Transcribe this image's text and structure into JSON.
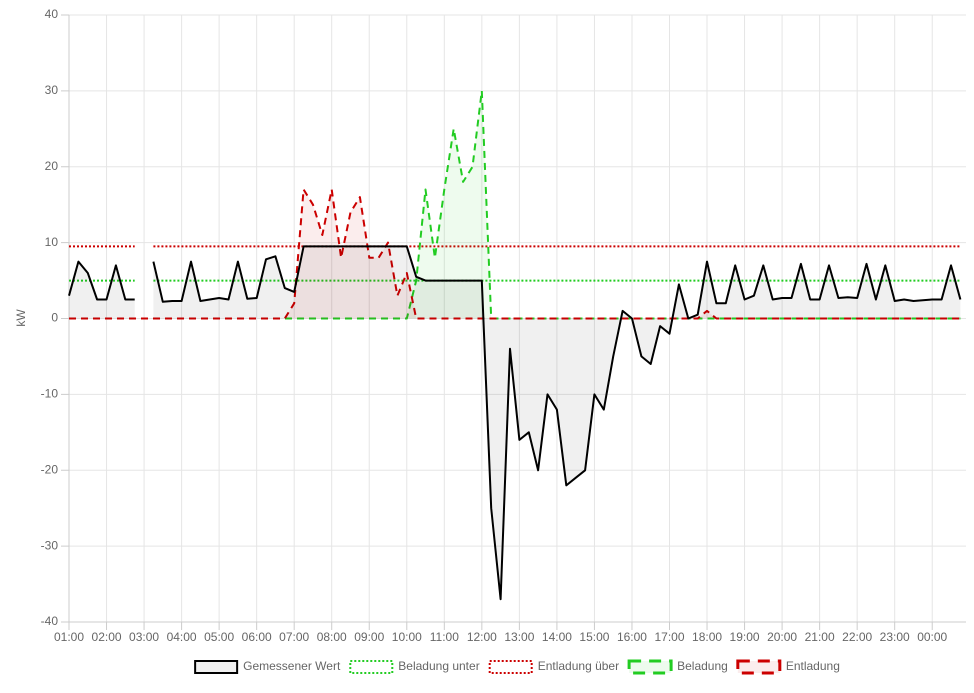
{
  "chart_data": {
    "type": "line",
    "y_label": "kW",
    "xlim": [
      1,
      24.9
    ],
    "xticks": [
      {
        "value": 1,
        "label": "01:00"
      },
      {
        "value": 2,
        "label": "02:00"
      },
      {
        "value": 3,
        "label": "03:00"
      },
      {
        "value": 4,
        "label": "04:00"
      },
      {
        "value": 5,
        "label": "05:00"
      },
      {
        "value": 6,
        "label": "06:00"
      },
      {
        "value": 7,
        "label": "07:00"
      },
      {
        "value": 8,
        "label": "08:00"
      },
      {
        "value": 9,
        "label": "09:00"
      },
      {
        "value": 10,
        "label": "10:00"
      },
      {
        "value": 11,
        "label": "11:00"
      },
      {
        "value": 12,
        "label": "12:00"
      },
      {
        "value": 13,
        "label": "13:00"
      },
      {
        "value": 14,
        "label": "14:00"
      },
      {
        "value": 15,
        "label": "15:00"
      },
      {
        "value": 16,
        "label": "16:00"
      },
      {
        "value": 17,
        "label": "17:00"
      },
      {
        "value": 18,
        "label": "18:00"
      },
      {
        "value": 19,
        "label": "19:00"
      },
      {
        "value": 20,
        "label": "20:00"
      },
      {
        "value": 21,
        "label": "21:00"
      },
      {
        "value": 22,
        "label": "22:00"
      },
      {
        "value": 23,
        "label": "23:00"
      },
      {
        "value": 24,
        "label": "00:00"
      }
    ],
    "ylim": [
      -40,
      40
    ],
    "yticks": [
      40,
      30,
      20,
      10,
      0,
      -10,
      -20,
      -30,
      -40
    ],
    "grid": true,
    "legend": "bottom",
    "x": [
      1,
      1.25,
      1.5,
      1.75,
      2,
      2.25,
      2.5,
      2.75,
      3,
      3.25,
      3.5,
      3.75,
      4,
      4.25,
      4.5,
      4.75,
      5,
      5.25,
      5.5,
      5.75,
      6,
      6.25,
      6.5,
      6.75,
      7,
      7.25,
      7.5,
      7.75,
      8,
      8.25,
      8.5,
      8.75,
      9,
      9.25,
      9.5,
      9.75,
      10,
      10.25,
      10.5,
      10.75,
      11,
      11.25,
      11.5,
      11.75,
      12,
      12.25,
      12.5,
      12.75,
      13,
      13.25,
      13.5,
      13.75,
      14,
      14.25,
      14.5,
      14.75,
      15,
      15.25,
      15.5,
      15.75,
      16,
      16.25,
      16.5,
      16.75,
      17,
      17.25,
      17.5,
      17.75,
      18,
      18.25,
      18.5,
      18.75,
      19,
      19.25,
      19.5,
      19.75,
      20,
      20.25,
      20.5,
      20.75,
      21,
      21.25,
      21.5,
      21.75,
      22,
      22.25,
      22.5,
      22.75,
      23,
      23.25,
      23.5,
      23.75,
      24,
      24.25,
      24.5,
      24.75
    ],
    "series": [
      {
        "name": "Gemessener Wert",
        "color": "#000000",
        "fill": "rgba(0,0,0,0.06)",
        "style": "solid",
        "values": [
          3,
          7.5,
          6,
          2.5,
          2.5,
          7,
          2.5,
          2.5,
          null,
          7.5,
          2.2,
          2.3,
          2.3,
          7.5,
          2.3,
          2.5,
          2.7,
          2.5,
          7.5,
          2.6,
          2.7,
          7.8,
          8.2,
          4,
          3.5,
          9.5,
          9.5,
          9.5,
          9.5,
          9.5,
          9.5,
          9.5,
          9.5,
          9.5,
          9.5,
          9.5,
          9.5,
          5.5,
          5,
          5,
          5,
          5,
          5,
          5,
          5,
          -25,
          -37,
          -4,
          -16,
          -15,
          -20,
          -10,
          -12,
          -22,
          -21,
          -20,
          -10,
          -12,
          -5,
          1,
          0,
          -5,
          -6,
          -1,
          -2,
          4.5,
          0,
          0.5,
          7.5,
          2,
          2,
          7,
          2.5,
          3,
          7,
          2.5,
          2.7,
          2.7,
          7.2,
          2.5,
          2.5,
          7,
          2.7,
          2.8,
          2.7,
          7.2,
          2.5,
          7,
          2.3,
          2.5,
          2.3,
          2.4,
          2.5,
          2.5,
          7,
          2.5
        ]
      },
      {
        "name": "Beladung unter",
        "color": "#22cc22",
        "style": "dotted",
        "values": [
          5,
          5,
          5,
          5,
          5,
          5,
          5,
          5,
          null,
          5,
          5,
          5,
          5,
          5,
          5,
          5,
          5,
          5,
          5,
          5,
          5,
          5,
          5,
          5,
          5,
          5,
          5,
          5,
          5,
          5,
          5,
          5,
          5,
          5,
          5,
          5,
          5,
          5,
          5,
          5,
          5,
          5,
          5,
          5,
          5,
          5,
          5,
          5,
          5,
          5,
          5,
          5,
          5,
          5,
          5,
          5,
          5,
          5,
          5,
          5,
          5,
          5,
          5,
          5,
          5,
          5,
          5,
          5,
          5,
          5,
          5,
          5,
          5,
          5,
          5,
          5,
          5,
          5,
          5,
          5,
          5,
          5,
          5,
          5,
          5,
          5,
          5,
          5,
          5,
          5,
          5,
          5,
          5,
          5,
          5,
          5
        ]
      },
      {
        "name": "Entladung über",
        "color": "#cc0000",
        "style": "dotted",
        "values": [
          9.5,
          9.5,
          9.5,
          9.5,
          9.5,
          9.5,
          9.5,
          9.5,
          null,
          9.5,
          9.5,
          9.5,
          9.5,
          9.5,
          9.5,
          9.5,
          9.5,
          9.5,
          9.5,
          9.5,
          9.5,
          9.5,
          9.5,
          9.5,
          9.5,
          9.5,
          9.5,
          9.5,
          9.5,
          9.5,
          9.5,
          9.5,
          9.5,
          9.5,
          9.5,
          9.5,
          9.5,
          9.5,
          9.5,
          9.5,
          9.5,
          9.5,
          9.5,
          9.5,
          9.5,
          9.5,
          9.5,
          9.5,
          9.5,
          9.5,
          9.5,
          9.5,
          9.5,
          9.5,
          9.5,
          9.5,
          9.5,
          9.5,
          9.5,
          9.5,
          9.5,
          9.5,
          9.5,
          9.5,
          9.5,
          9.5,
          9.5,
          9.5,
          9.5,
          9.5,
          9.5,
          9.5,
          9.5,
          9.5,
          9.5,
          9.5,
          9.5,
          9.5,
          9.5,
          9.5,
          9.5,
          9.5,
          9.5,
          9.5,
          9.5,
          9.5,
          9.5,
          9.5,
          9.5,
          9.5,
          9.5,
          9.5,
          9.5,
          9.5,
          9.5,
          9.5
        ]
      },
      {
        "name": "Beladung",
        "color": "#22cc22",
        "fill": "rgba(34,204,34,0.08)",
        "style": "dashed",
        "values": [
          0,
          0,
          0,
          0,
          0,
          0,
          0,
          0,
          0,
          0,
          0,
          0,
          0,
          0,
          0,
          0,
          0,
          0,
          0,
          0,
          0,
          0,
          0,
          0,
          0,
          0,
          0,
          0,
          0,
          0,
          0,
          0,
          0,
          0,
          0,
          0,
          0,
          5,
          17,
          8,
          17,
          25,
          18,
          20,
          30,
          0,
          0,
          0,
          0,
          0,
          0,
          0,
          0,
          0,
          0,
          0,
          0,
          0,
          0,
          0,
          0,
          0,
          0,
          0,
          0,
          0,
          0,
          0,
          0,
          0,
          0,
          0,
          0,
          0,
          0,
          0,
          0,
          0,
          0,
          0,
          0,
          0,
          0,
          0,
          0,
          0,
          0,
          0,
          0,
          0,
          0,
          0,
          0,
          0,
          0,
          0
        ]
      },
      {
        "name": "Entladung",
        "color": "#cc0000",
        "fill": "rgba(204,0,0,0.07)",
        "style": "dashed",
        "values": [
          0,
          0,
          0,
          0,
          0,
          0,
          0,
          0,
          0,
          0,
          0,
          0,
          0,
          0,
          0,
          0,
          0,
          0,
          0,
          0,
          0,
          0,
          0,
          0,
          2,
          17,
          15,
          11,
          17,
          8,
          14,
          16,
          8,
          8,
          10,
          3,
          6,
          0,
          0,
          0,
          0,
          0,
          0,
          0,
          0,
          0,
          0,
          0,
          0,
          0,
          0,
          0,
          0,
          0,
          0,
          0,
          0,
          0,
          0,
          0,
          0,
          0,
          0,
          0,
          0,
          0,
          0,
          0,
          1,
          0,
          0,
          0,
          0,
          0,
          0,
          0,
          0,
          0,
          0,
          0,
          0,
          0,
          0,
          0,
          0,
          0,
          0,
          0,
          0,
          0,
          0,
          0,
          0,
          0,
          0,
          0
        ]
      }
    ]
  }
}
